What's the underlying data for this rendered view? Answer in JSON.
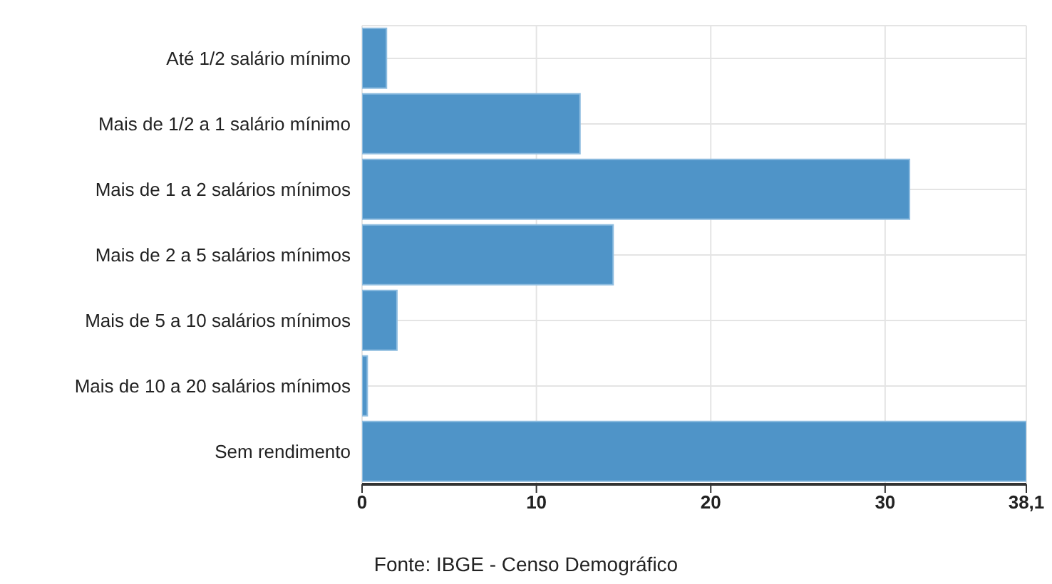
{
  "chart_data": {
    "type": "bar",
    "orientation": "horizontal",
    "categories": [
      "Até 1/2 salário mínimo",
      "Mais de 1/2 a 1 salário mínimo",
      "Mais de 1 a 2 salários mínimos",
      "Mais de 2 a 5 salários mínimos",
      "Mais de 5 a 10 salários mínimos",
      "Mais de 10 a 20 salários mínimos",
      "Sem rendimento"
    ],
    "values": [
      1.4,
      12.5,
      31.4,
      14.4,
      2.0,
      0.3,
      38.1
    ],
    "color": "#4f94c8",
    "xlim": [
      0,
      38.1
    ],
    "xticks": [
      0,
      10,
      20,
      30,
      {
        "value": 38.1,
        "label": "38,1"
      }
    ],
    "grid": true,
    "annotations": [
      "Fonte: IBGE - Censo Demográfico"
    ]
  }
}
